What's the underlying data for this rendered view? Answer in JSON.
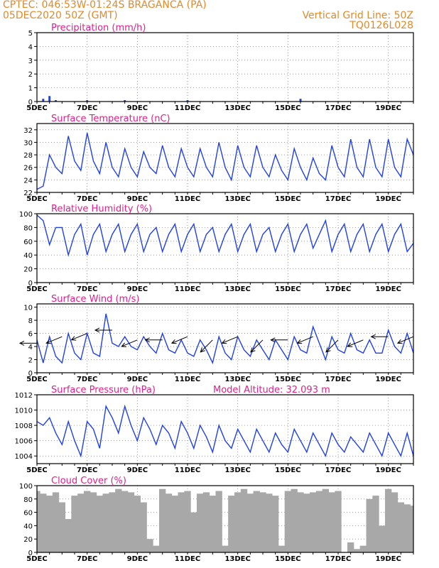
{
  "header": {
    "line1": "CPTEC:   046:53W-01:24S   BRAGANCA (PA)",
    "line2": "05DEC2020 50Z (GMT)",
    "right1": "Vertical Grid Line: 50Z",
    "right2": "TQ0126L028"
  },
  "colors": {
    "header": "#e08a2a",
    "title": "#e0208a",
    "series": "#2040e8",
    "cloud": "#a8a8a8",
    "arrow": "#000000"
  },
  "date_ticks": [
    "5DEC",
    "7DEC",
    "9DEC",
    "11DEC",
    "13DEC",
    "15DEC",
    "17DEC",
    "19DEC"
  ],
  "chart_data": [
    {
      "id": "precip",
      "type": "bar",
      "title": "Precipitation (mm/h)",
      "x_range": [
        0,
        360
      ],
      "ylim": [
        0,
        5
      ],
      "yticks": [
        0,
        1,
        2,
        3,
        4,
        5
      ],
      "x": [
        0,
        6,
        12,
        18,
        24,
        30,
        36,
        42,
        48,
        54,
        60,
        66,
        72,
        78,
        84,
        90,
        96,
        102,
        108,
        114,
        120,
        126,
        132,
        138,
        144,
        150,
        156,
        162,
        168,
        174,
        180,
        186,
        192,
        198,
        204,
        210,
        216,
        222,
        228,
        234,
        240,
        246,
        252,
        258,
        264,
        270,
        276,
        282,
        288,
        294,
        300,
        306,
        312,
        318,
        324,
        330,
        336,
        342,
        348,
        354,
        360
      ],
      "values": [
        0.0,
        0.2,
        0.4,
        0.1,
        0.0,
        0.0,
        0.0,
        0.0,
        0.1,
        0.0,
        0.0,
        0.0,
        0.0,
        0.0,
        0.1,
        0.0,
        0.0,
        0.0,
        0.0,
        0.0,
        0.0,
        0.0,
        0.0,
        0.0,
        0.1,
        0.0,
        0.0,
        0.0,
        0.0,
        0.0,
        0.0,
        0.0,
        0.0,
        0.0,
        0.0,
        0.0,
        0.0,
        0.0,
        0.0,
        0.0,
        0.0,
        0.0,
        0.2,
        0.0,
        0.0,
        0.0,
        0.0,
        0.0,
        0.0,
        0.0,
        0.0,
        0.0,
        0.0,
        0.0,
        0.0,
        0.0,
        0.0,
        0.0,
        0.0,
        0.0,
        0.0
      ]
    },
    {
      "id": "temp",
      "type": "line",
      "title": "Surface Temperature (nC)",
      "x_range": [
        0,
        360
      ],
      "ylim": [
        22,
        33
      ],
      "yticks": [
        22,
        24,
        26,
        28,
        30,
        32
      ],
      "x": [
        0,
        6,
        12,
        18,
        24,
        30,
        36,
        42,
        48,
        54,
        60,
        66,
        72,
        78,
        84,
        90,
        96,
        102,
        108,
        114,
        120,
        126,
        132,
        138,
        144,
        150,
        156,
        162,
        168,
        174,
        180,
        186,
        192,
        198,
        204,
        210,
        216,
        222,
        228,
        234,
        240,
        246,
        252,
        258,
        264,
        270,
        276,
        282,
        288,
        294,
        300,
        306,
        312,
        318,
        324,
        330,
        336,
        342,
        348,
        354,
        360
      ],
      "values": [
        22.5,
        23.0,
        28.0,
        26.0,
        25.0,
        31.0,
        27.0,
        25.5,
        31.5,
        27.0,
        25.0,
        30.0,
        26.0,
        24.5,
        29.0,
        26.0,
        24.5,
        28.5,
        26.0,
        25.0,
        29.5,
        26.0,
        24.5,
        29.0,
        26.0,
        24.5,
        29.0,
        26.0,
        24.5,
        30.0,
        26.0,
        24.0,
        29.5,
        26.0,
        24.5,
        29.5,
        26.0,
        24.5,
        28.0,
        25.5,
        24.0,
        29.0,
        26.0,
        24.0,
        27.5,
        25.0,
        24.0,
        29.5,
        26.0,
        24.5,
        30.5,
        26.0,
        24.5,
        30.5,
        26.0,
        24.5,
        30.5,
        26.0,
        24.5,
        30.5,
        28.0
      ]
    },
    {
      "id": "rh",
      "type": "line",
      "title": "Relative Humidity (%)",
      "x_range": [
        0,
        360
      ],
      "ylim": [
        0,
        100
      ],
      "yticks": [
        0,
        20,
        40,
        60,
        80,
        100
      ],
      "x": [
        0,
        6,
        12,
        18,
        24,
        30,
        36,
        42,
        48,
        54,
        60,
        66,
        72,
        78,
        84,
        90,
        96,
        102,
        108,
        114,
        120,
        126,
        132,
        138,
        144,
        150,
        156,
        162,
        168,
        174,
        180,
        186,
        192,
        198,
        204,
        210,
        216,
        222,
        228,
        234,
        240,
        246,
        252,
        258,
        264,
        270,
        276,
        282,
        288,
        294,
        300,
        306,
        312,
        318,
        324,
        330,
        336,
        342,
        348,
        354,
        360
      ],
      "values": [
        98,
        90,
        55,
        80,
        80,
        40,
        70,
        85,
        40,
        70,
        85,
        45,
        70,
        85,
        45,
        70,
        85,
        45,
        70,
        80,
        45,
        70,
        85,
        45,
        70,
        85,
        45,
        70,
        80,
        45,
        70,
        85,
        45,
        70,
        85,
        45,
        70,
        80,
        45,
        70,
        85,
        45,
        70,
        85,
        50,
        70,
        90,
        45,
        70,
        85,
        45,
        70,
        85,
        45,
        70,
        85,
        45,
        70,
        85,
        45,
        57
      ]
    },
    {
      "id": "wind",
      "type": "line",
      "title": "Surface Wind (m/s)",
      "x_range": [
        0,
        360
      ],
      "ylim": [
        0,
        10.5
      ],
      "yticks": [
        0,
        2,
        4,
        6,
        8,
        10
      ],
      "x": [
        0,
        6,
        12,
        18,
        24,
        30,
        36,
        42,
        48,
        54,
        60,
        66,
        72,
        78,
        84,
        90,
        96,
        102,
        108,
        114,
        120,
        126,
        132,
        138,
        144,
        150,
        156,
        162,
        168,
        174,
        180,
        186,
        192,
        198,
        204,
        210,
        216,
        222,
        228,
        234,
        240,
        246,
        252,
        258,
        264,
        270,
        276,
        282,
        288,
        294,
        300,
        306,
        312,
        318,
        324,
        330,
        336,
        342,
        348,
        354,
        360
      ],
      "values": [
        5.0,
        1.5,
        5.5,
        2.5,
        1.5,
        6.0,
        3.0,
        2.0,
        6.0,
        3.0,
        2.5,
        9.0,
        4.5,
        4.0,
        5.5,
        4.0,
        3.5,
        5.5,
        4.0,
        3.0,
        6.0,
        3.5,
        3.0,
        5.0,
        3.0,
        2.5,
        5.0,
        3.5,
        1.5,
        5.5,
        3.0,
        2.0,
        5.5,
        3.5,
        2.5,
        5.0,
        3.5,
        2.0,
        5.0,
        3.5,
        2.0,
        5.5,
        3.5,
        3.0,
        7.0,
        4.5,
        2.0,
        5.5,
        3.5,
        3.0,
        6.0,
        3.5,
        3.0,
        5.0,
        3.0,
        3.0,
        6.5,
        4.0,
        3.0,
        6.0,
        3.0
      ],
      "arrows_x": [
        0,
        24,
        48,
        72,
        96,
        120,
        144,
        168,
        192,
        216,
        240,
        264,
        288,
        312,
        336,
        360
      ],
      "arrows_speed": [
        4.5,
        5.5,
        6.0,
        6.5,
        5.0,
        5.0,
        5.5,
        5.0,
        5.5,
        5.0,
        5.0,
        5.5,
        5.0,
        5.0,
        5.5,
        5.5
      ],
      "arrows_dir": [
        "E",
        "ENE",
        "ENE",
        "E",
        "ENE",
        "E",
        "ENE",
        "NE",
        "ENE",
        "NE",
        "E",
        "ENE",
        "NE",
        "ENE",
        "E",
        "ENE"
      ]
    },
    {
      "id": "pressure",
      "type": "line",
      "title": "Surface Pressure (hPa)",
      "annotation": "Model Altitude: 32.093 m",
      "x_range": [
        0,
        360
      ],
      "ylim": [
        1003,
        1012
      ],
      "yticks": [
        1004,
        1006,
        1008,
        1010,
        1012
      ],
      "x": [
        0,
        6,
        12,
        18,
        24,
        30,
        36,
        42,
        48,
        54,
        60,
        66,
        72,
        78,
        84,
        90,
        96,
        102,
        108,
        114,
        120,
        126,
        132,
        138,
        144,
        150,
        156,
        162,
        168,
        174,
        180,
        186,
        192,
        198,
        204,
        210,
        216,
        222,
        228,
        234,
        240,
        246,
        252,
        258,
        264,
        270,
        276,
        282,
        288,
        294,
        300,
        306,
        312,
        318,
        324,
        330,
        336,
        342,
        348,
        354,
        360
      ],
      "values": [
        1008.5,
        1008,
        1009,
        1007,
        1005.5,
        1008.5,
        1006,
        1004,
        1008.5,
        1007.5,
        1005,
        1010.5,
        1009,
        1007,
        1010.5,
        1008,
        1006,
        1009,
        1007.5,
        1005.5,
        1008,
        1007,
        1005,
        1008.5,
        1007,
        1005,
        1008,
        1006.5,
        1004.5,
        1008,
        1006,
        1005,
        1007.5,
        1006,
        1004.5,
        1007.5,
        1006,
        1004.5,
        1007,
        1005.5,
        1004.5,
        1007.5,
        1006,
        1004.5,
        1007,
        1005.5,
        1004,
        1007,
        1005.5,
        1004.5,
        1006.5,
        1005.5,
        1004.5,
        1007,
        1005.5,
        1004,
        1007,
        1005.5,
        1004,
        1007,
        1004
      ]
    },
    {
      "id": "cloud",
      "type": "area",
      "title": "Cloud Cover (%)",
      "x_range": [
        0,
        360
      ],
      "ylim": [
        0,
        100
      ],
      "yticks": [
        0,
        20,
        40,
        60,
        80,
        100
      ],
      "x": [
        0,
        6,
        12,
        18,
        24,
        30,
        36,
        42,
        48,
        54,
        60,
        66,
        72,
        78,
        84,
        90,
        96,
        102,
        108,
        114,
        120,
        126,
        132,
        138,
        144,
        150,
        156,
        162,
        168,
        174,
        180,
        186,
        192,
        198,
        204,
        210,
        216,
        222,
        228,
        234,
        240,
        246,
        252,
        258,
        264,
        270,
        276,
        282,
        288,
        294,
        300,
        306,
        312,
        318,
        324,
        330,
        336,
        342,
        348,
        354,
        360
      ],
      "values": [
        92,
        88,
        85,
        90,
        75,
        50,
        85,
        88,
        92,
        90,
        85,
        88,
        90,
        95,
        92,
        90,
        85,
        75,
        20,
        10,
        95,
        88,
        85,
        90,
        92,
        60,
        88,
        90,
        85,
        92,
        10,
        85,
        90,
        95,
        88,
        92,
        90,
        88,
        85,
        10,
        92,
        95,
        90,
        88,
        90,
        92,
        95,
        90,
        92,
        0,
        15,
        5,
        10,
        80,
        85,
        40,
        95,
        90,
        75,
        72,
        70
      ]
    }
  ]
}
